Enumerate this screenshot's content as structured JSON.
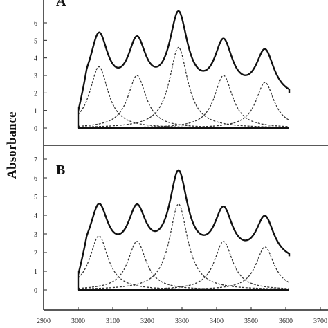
{
  "chart_data": {
    "type": "line",
    "ylabel": "Absorbance",
    "xlabel": "",
    "x_ticks": [
      2900,
      3000,
      3100,
      3200,
      3300,
      3400,
      3500,
      3600,
      3700
    ],
    "xlim": [
      2900,
      3700
    ],
    "x_range": [
      3000,
      3610
    ],
    "panels": [
      {
        "label": "A",
        "ylim": [
          -0.5,
          7.2
        ],
        "y_ticks": [
          0,
          1,
          2,
          3,
          4,
          5,
          6
        ],
        "baseline": 0,
        "bands": [
          {
            "center": 3060,
            "height": 3.5,
            "width": 32
          },
          {
            "center": 3170,
            "height": 3.0,
            "width": 32
          },
          {
            "center": 3290,
            "height": 4.6,
            "width": 32
          },
          {
            "center": 3420,
            "height": 3.0,
            "width": 32
          },
          {
            "center": 3540,
            "height": 2.6,
            "width": 32
          }
        ],
        "envelope": {
          "offset": 1.6,
          "start": 1.2,
          "end": 2.0
        }
      },
      {
        "label": "B",
        "ylim": [
          -0.6,
          7.8
        ],
        "y_ticks": [
          0,
          1,
          2,
          3,
          4,
          5,
          6,
          7
        ],
        "baseline": 0,
        "bands": [
          {
            "center": 3060,
            "height": 2.9,
            "width": 32
          },
          {
            "center": 3170,
            "height": 2.6,
            "width": 32
          },
          {
            "center": 3290,
            "height": 4.6,
            "width": 32
          },
          {
            "center": 3420,
            "height": 2.6,
            "width": 32
          },
          {
            "center": 3540,
            "height": 2.3,
            "width": 32
          }
        ],
        "envelope": {
          "offset": 1.4,
          "start": 1.0,
          "end": 1.8
        }
      }
    ]
  }
}
